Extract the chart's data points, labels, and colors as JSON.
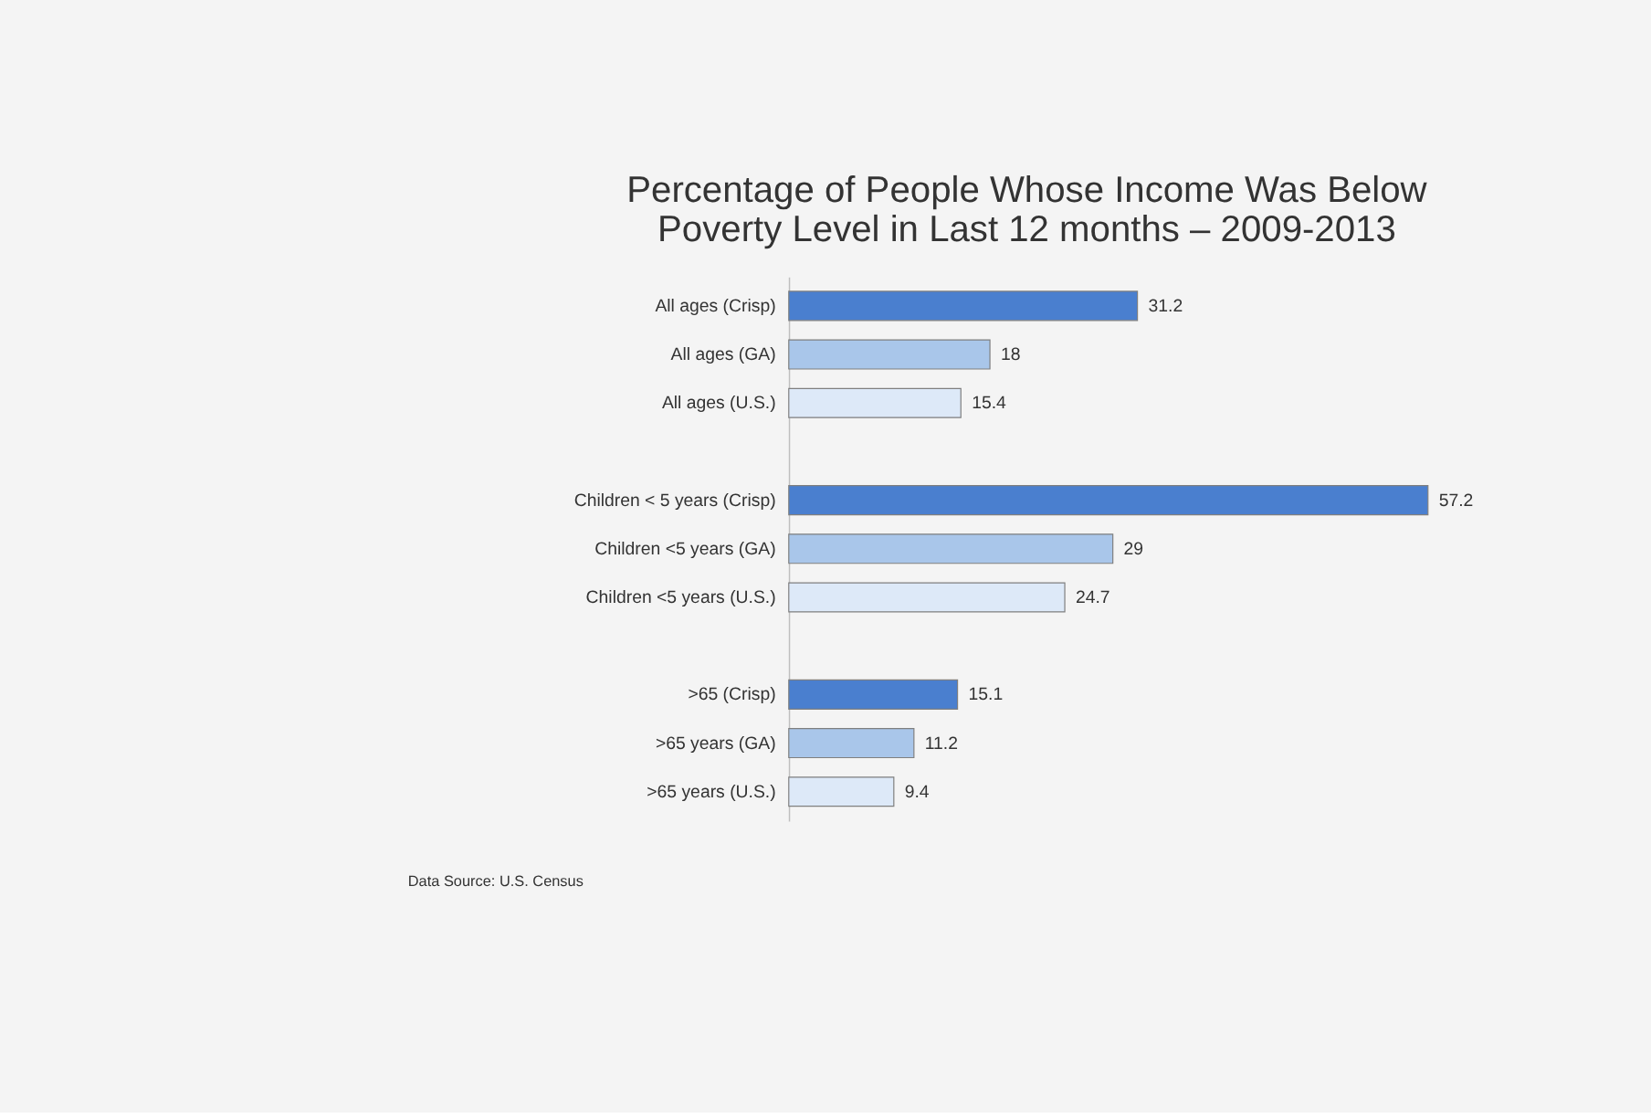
{
  "chart_data": {
    "type": "bar",
    "orientation": "horizontal",
    "title": "Percentage of People Whose Income Was Below Poverty Level in Last 12 months – 2009-2013",
    "categories": [
      "All ages (Crisp)",
      "All ages (GA)",
      "All ages (U.S.)",
      null,
      "Children < 5 years (Crisp)",
      "Children <5 years (GA)",
      "Children <5 years (U.S.)",
      null,
      ">65 (Crisp)",
      ">65 years (GA)",
      ">65 years (U.S.)"
    ],
    "values": [
      31.2,
      18,
      15.4,
      null,
      57.2,
      29,
      24.7,
      null,
      15.1,
      11.2,
      9.4
    ],
    "colors": [
      "#4a7fcf",
      "#a9c6ea",
      "#dde9f8",
      null,
      "#4a7fcf",
      "#a9c6ea",
      "#dde9f8",
      null,
      "#4a7fcf",
      "#a9c6ea",
      "#dde9f8"
    ],
    "data_labels": true,
    "annotations": [
      "Data Source:  U.S. Census"
    ]
  }
}
